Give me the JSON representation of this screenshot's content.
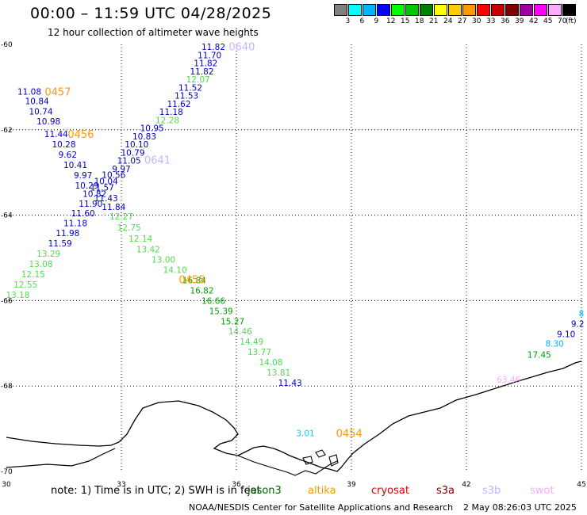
{
  "header": {
    "title": "00:00 – 11:59 UTC 04/28/2025",
    "subtitle": "12 hour collection of altimeter wave heights"
  },
  "legend": {
    "colors": [
      "#808080",
      "#00ffff",
      "#00b4ff",
      "#0000ff",
      "#00ff00",
      "#00c800",
      "#008000",
      "#ffff00",
      "#ffcc00",
      "#ff9900",
      "#ff0000",
      "#c80000",
      "#800000",
      "#a000a0",
      "#ff00ff",
      "#ffaaff",
      "#000000"
    ],
    "labels": [
      "3",
      "6",
      "9",
      "12",
      "15",
      "18",
      "21",
      "24",
      "27",
      "30",
      "33",
      "36",
      "39",
      "42",
      "45",
      "70",
      "(ft)"
    ]
  },
  "axes": {
    "lat_labels": [
      "-60",
      "-62",
      "-64",
      "-66",
      "-68",
      "-70"
    ],
    "lon_labels": [
      "30",
      "33",
      "36",
      "39",
      "42",
      "45"
    ]
  },
  "chart_data": {
    "type": "scatter",
    "title": "00:00 – 11:59 UTC 04/28/2025",
    "subtitle": "12 hour collection of altimeter wave heights",
    "unit": "ft",
    "lon_range": [
      30,
      45
    ],
    "lat_range": [
      -60,
      -70
    ],
    "pass_labels": [
      {
        "text": "0640",
        "lon": 35.8,
        "lat": -60.05,
        "color": "#c8b4ff"
      },
      {
        "text": "0457",
        "lon": 31.0,
        "lat": -61.1,
        "color": "#ff9900"
      },
      {
        "text": "0456",
        "lon": 31.6,
        "lat": -62.1,
        "color": "#ff9900"
      },
      {
        "text": "0641",
        "lon": 33.6,
        "lat": -62.7,
        "color": "#c8b4ff"
      },
      {
        "text": "0455",
        "lon": 34.5,
        "lat": -65.5,
        "color": "#ff9900"
      },
      {
        "text": "0454",
        "lon": 38.6,
        "lat": -69.1,
        "color": "#ff9900"
      }
    ],
    "points": [
      {
        "lon": 35.4,
        "lat": -60.06,
        "value": "11.82",
        "color": "#0000c8"
      },
      {
        "lon": 35.3,
        "lat": -60.25,
        "value": "11.70",
        "color": "#0000c8"
      },
      {
        "lon": 35.2,
        "lat": -60.44,
        "value": "11.82",
        "color": "#0000c8"
      },
      {
        "lon": 35.1,
        "lat": -60.63,
        "value": "11.82",
        "color": "#0000c8"
      },
      {
        "lon": 35.0,
        "lat": -60.82,
        "value": "12.07",
        "color": "#50dc50"
      },
      {
        "lon": 34.8,
        "lat": -61.01,
        "value": "11.52",
        "color": "#0000c8"
      },
      {
        "lon": 34.7,
        "lat": -61.2,
        "value": "11.53",
        "color": "#0000c8"
      },
      {
        "lon": 34.5,
        "lat": -61.39,
        "value": "11.62",
        "color": "#0000c8"
      },
      {
        "lon": 34.3,
        "lat": -61.58,
        "value": "11.18",
        "color": "#0000c8"
      },
      {
        "lon": 34.2,
        "lat": -61.77,
        "value": "12.28",
        "color": "#50dc50"
      },
      {
        "lon": 33.8,
        "lat": -61.96,
        "value": "10.95",
        "color": "#0000c8"
      },
      {
        "lon": 33.6,
        "lat": -62.15,
        "value": "10.83",
        "color": "#0000c8"
      },
      {
        "lon": 33.4,
        "lat": -62.34,
        "value": "10.10",
        "color": "#0000c8"
      },
      {
        "lon": 33.3,
        "lat": -62.53,
        "value": "10.79",
        "color": "#0000c8"
      },
      {
        "lon": 33.2,
        "lat": -62.72,
        "value": "11.05",
        "color": "#0000c8"
      },
      {
        "lon": 33.0,
        "lat": -62.91,
        "value": "9.97",
        "color": "#0000c8"
      },
      {
        "lon": 32.8,
        "lat": -63.05,
        "value": "10.56",
        "color": "#0000c8"
      },
      {
        "lon": 32.6,
        "lat": -63.2,
        "value": "10.04",
        "color": "#0000c8"
      },
      {
        "lon": 32.5,
        "lat": -63.35,
        "value": "11.57",
        "color": "#0000c8"
      },
      {
        "lon": 32.6,
        "lat": -63.6,
        "value": "11.43",
        "color": "#0000c8"
      },
      {
        "lon": 32.8,
        "lat": -63.8,
        "value": "11.84",
        "color": "#0000c8"
      },
      {
        "lon": 33.0,
        "lat": -64.03,
        "value": "12.27",
        "color": "#50dc50"
      },
      {
        "lon": 33.2,
        "lat": -64.29,
        "value": "12.75",
        "color": "#50dc50"
      },
      {
        "lon": 33.5,
        "lat": -64.55,
        "value": "12.14",
        "color": "#50dc50"
      },
      {
        "lon": 33.7,
        "lat": -64.8,
        "value": "13.42",
        "color": "#50dc50"
      },
      {
        "lon": 34.1,
        "lat": -65.04,
        "value": "13.00",
        "color": "#50dc50"
      },
      {
        "lon": 34.4,
        "lat": -65.28,
        "value": "14.10",
        "color": "#50dc50"
      },
      {
        "lon": 34.9,
        "lat": -65.52,
        "value": "16.84",
        "color": "#00a000"
      },
      {
        "lon": 35.1,
        "lat": -65.76,
        "value": "16.82",
        "color": "#00a000"
      },
      {
        "lon": 35.4,
        "lat": -66.0,
        "value": "16.66",
        "color": "#00a000"
      },
      {
        "lon": 35.6,
        "lat": -66.24,
        "value": "15.39",
        "color": "#00a000"
      },
      {
        "lon": 35.9,
        "lat": -66.48,
        "value": "15.27",
        "color": "#00a000"
      },
      {
        "lon": 36.1,
        "lat": -66.72,
        "value": "14.46",
        "color": "#50dc50"
      },
      {
        "lon": 36.4,
        "lat": -66.96,
        "value": "14.49",
        "color": "#50dc50"
      },
      {
        "lon": 36.6,
        "lat": -67.2,
        "value": "13.77",
        "color": "#50dc50"
      },
      {
        "lon": 36.9,
        "lat": -67.44,
        "value": "14.08",
        "color": "#50dc50"
      },
      {
        "lon": 37.1,
        "lat": -67.68,
        "value": "13.81",
        "color": "#50dc50"
      },
      {
        "lon": 37.4,
        "lat": -67.92,
        "value": "11.43",
        "color": "#0000c8"
      },
      {
        "lon": 37.8,
        "lat": -69.1,
        "value": "3.01",
        "color": "#00c8ff"
      },
      {
        "lon": 30.6,
        "lat": -61.1,
        "value": "11.08",
        "color": "#0000c8"
      },
      {
        "lon": 30.8,
        "lat": -61.33,
        "value": "10.84",
        "color": "#0000c8"
      },
      {
        "lon": 30.9,
        "lat": -61.57,
        "value": "10.74",
        "color": "#0000c8"
      },
      {
        "lon": 31.1,
        "lat": -61.8,
        "value": "10.98",
        "color": "#0000c8"
      },
      {
        "lon": 31.3,
        "lat": -62.1,
        "value": "11.44",
        "color": "#0000c8"
      },
      {
        "lon": 31.5,
        "lat": -62.34,
        "value": "10.28",
        "color": "#0000c8"
      },
      {
        "lon": 31.6,
        "lat": -62.58,
        "value": "9.62",
        "color": "#0000c8"
      },
      {
        "lon": 31.8,
        "lat": -62.82,
        "value": "10.41",
        "color": "#0000c8"
      },
      {
        "lon": 32.0,
        "lat": -63.06,
        "value": "9.97",
        "color": "#0000c8"
      },
      {
        "lon": 32.1,
        "lat": -63.3,
        "value": "10.29",
        "color": "#0000c8"
      },
      {
        "lon": 32.3,
        "lat": -63.5,
        "value": "10.82",
        "color": "#0000c8"
      },
      {
        "lon": 32.2,
        "lat": -63.73,
        "value": "11.90",
        "color": "#0000c8"
      },
      {
        "lon": 32.0,
        "lat": -63.95,
        "value": "11.60",
        "color": "#0000c8"
      },
      {
        "lon": 31.8,
        "lat": -64.18,
        "value": "11.18",
        "color": "#0000c8"
      },
      {
        "lon": 31.6,
        "lat": -64.42,
        "value": "11.98",
        "color": "#0000c8"
      },
      {
        "lon": 31.4,
        "lat": -64.66,
        "value": "11.59",
        "color": "#0000c8"
      },
      {
        "lon": 31.1,
        "lat": -64.9,
        "value": "13.29",
        "color": "#50dc50"
      },
      {
        "lon": 30.9,
        "lat": -65.14,
        "value": "13.08",
        "color": "#50dc50"
      },
      {
        "lon": 30.7,
        "lat": -65.38,
        "value": "12.15",
        "color": "#50dc50"
      },
      {
        "lon": 30.5,
        "lat": -65.62,
        "value": "12.55",
        "color": "#50dc50"
      },
      {
        "lon": 30.3,
        "lat": -65.86,
        "value": "13.18",
        "color": "#50dc50"
      },
      {
        "lon": 45.0,
        "lat": -66.3,
        "value": "8",
        "color": "#00b4ff"
      },
      {
        "lon": 44.9,
        "lat": -66.54,
        "value": "9.2",
        "color": "#0000c8"
      },
      {
        "lon": 44.6,
        "lat": -66.78,
        "value": "9.10",
        "color": "#0000c8"
      },
      {
        "lon": 44.3,
        "lat": -67.0,
        "value": "8.30",
        "color": "#00b4ff"
      },
      {
        "lon": 43.9,
        "lat": -67.26,
        "value": "17.45",
        "color": "#00a000"
      },
      {
        "lon": 43.1,
        "lat": -67.85,
        "value": "63.46",
        "color": "#ffaaff"
      }
    ]
  },
  "footer": {
    "note": "note:  1) Time is in UTC; 2) SWH is in feet",
    "satellites": [
      {
        "name": "jason3",
        "color": "#006400"
      },
      {
        "name": "altika",
        "color": "#ff9900"
      },
      {
        "name": "cryosat",
        "color": "#e00000"
      },
      {
        "name": "s3a",
        "color": "#800000"
      },
      {
        "name": "s3b",
        "color": "#c8b4ff"
      },
      {
        "name": "swot",
        "color": "#ffaaff"
      }
    ],
    "credit": "NOAA/NESDIS Center for Satellite Applications and Research",
    "timestamp": "2 May 08:26:03 UTC 2025"
  }
}
